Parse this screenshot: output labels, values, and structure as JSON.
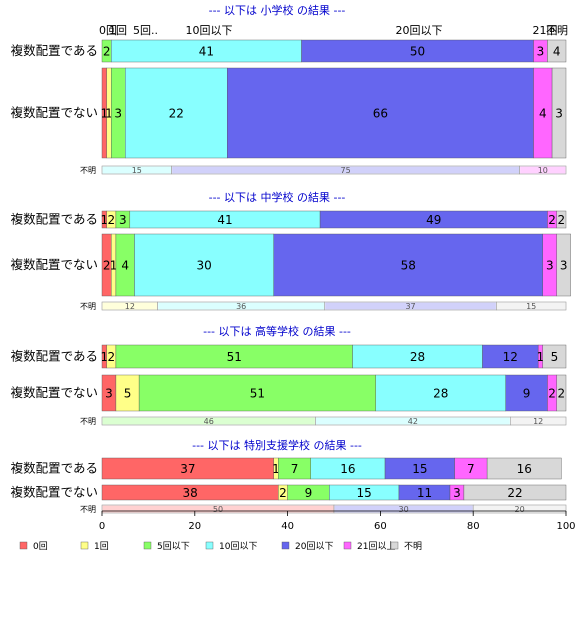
{
  "chart_data": {
    "type": "bar",
    "orientation": "horizontal",
    "stacked": true,
    "xlim": [
      0,
      100
    ],
    "x_ticks": [
      "0",
      "20",
      "40",
      "60",
      "80",
      "100"
    ],
    "categories": [
      "0回",
      "1回",
      "5回以下",
      "10回以下",
      "20回以下",
      "21回以上",
      "不明"
    ],
    "colors": [
      "#ff6666",
      "#ffff88",
      "#88ff66",
      "#88ffff",
      "#6666ee",
      "#ff66ff",
      "#d8d8d8"
    ],
    "top_header_labels": [
      "0回",
      "1回",
      "5回..",
      "10回以下",
      "20回以下",
      "21回",
      "不明"
    ],
    "groups": [
      {
        "title": "--- 以下は 小学校 の結果 ---",
        "rows": [
          {
            "label": "複数配置である",
            "values": [
              0,
              0,
              2,
              41,
              50,
              3,
              4
            ]
          },
          {
            "label": "複数配置でない",
            "values": [
              1,
              1,
              3,
              22,
              66,
              4,
              3
            ]
          }
        ],
        "unknown_label": "不明",
        "unknown_values": [
          0,
          0,
          0,
          15,
          75,
          10,
          0
        ]
      },
      {
        "title": "--- 以下は 中学校 の結果 ---",
        "rows": [
          {
            "label": "複数配置である",
            "values": [
              1,
              2,
              3,
              41,
              49,
              2,
              2
            ]
          },
          {
            "label": "複数配置でない",
            "values": [
              2,
              1,
              4,
              30,
              58,
              3,
              3
            ]
          }
        ],
        "unknown_label": "不明",
        "unknown_values": [
          0,
          12,
          0,
          36,
          37,
          0,
          15
        ]
      },
      {
        "title": "--- 以下は 高等学校 の結果 ---",
        "rows": [
          {
            "label": "複数配置である",
            "values": [
              1,
              2,
              51,
              28,
              12,
              1,
              5
            ]
          },
          {
            "label": "複数配置でない",
            "values": [
              3,
              5,
              51,
              28,
              9,
              2,
              2
            ]
          }
        ],
        "unknown_label": "不明",
        "unknown_values": [
          0,
          0,
          46,
          42,
          0,
          0,
          12
        ]
      },
      {
        "title": "--- 以下は 特別支援学校 の結果 ---",
        "rows": [
          {
            "label": "複数配置である",
            "values": [
              37,
              1,
              7,
              16,
              15,
              7,
              16
            ]
          },
          {
            "label": "複数配置でない",
            "values": [
              38,
              2,
              9,
              15,
              11,
              3,
              22
            ]
          }
        ],
        "unknown_label": "不明",
        "unknown_values": [
          50,
          0,
          0,
          0,
          30,
          0,
          20
        ]
      }
    ]
  }
}
